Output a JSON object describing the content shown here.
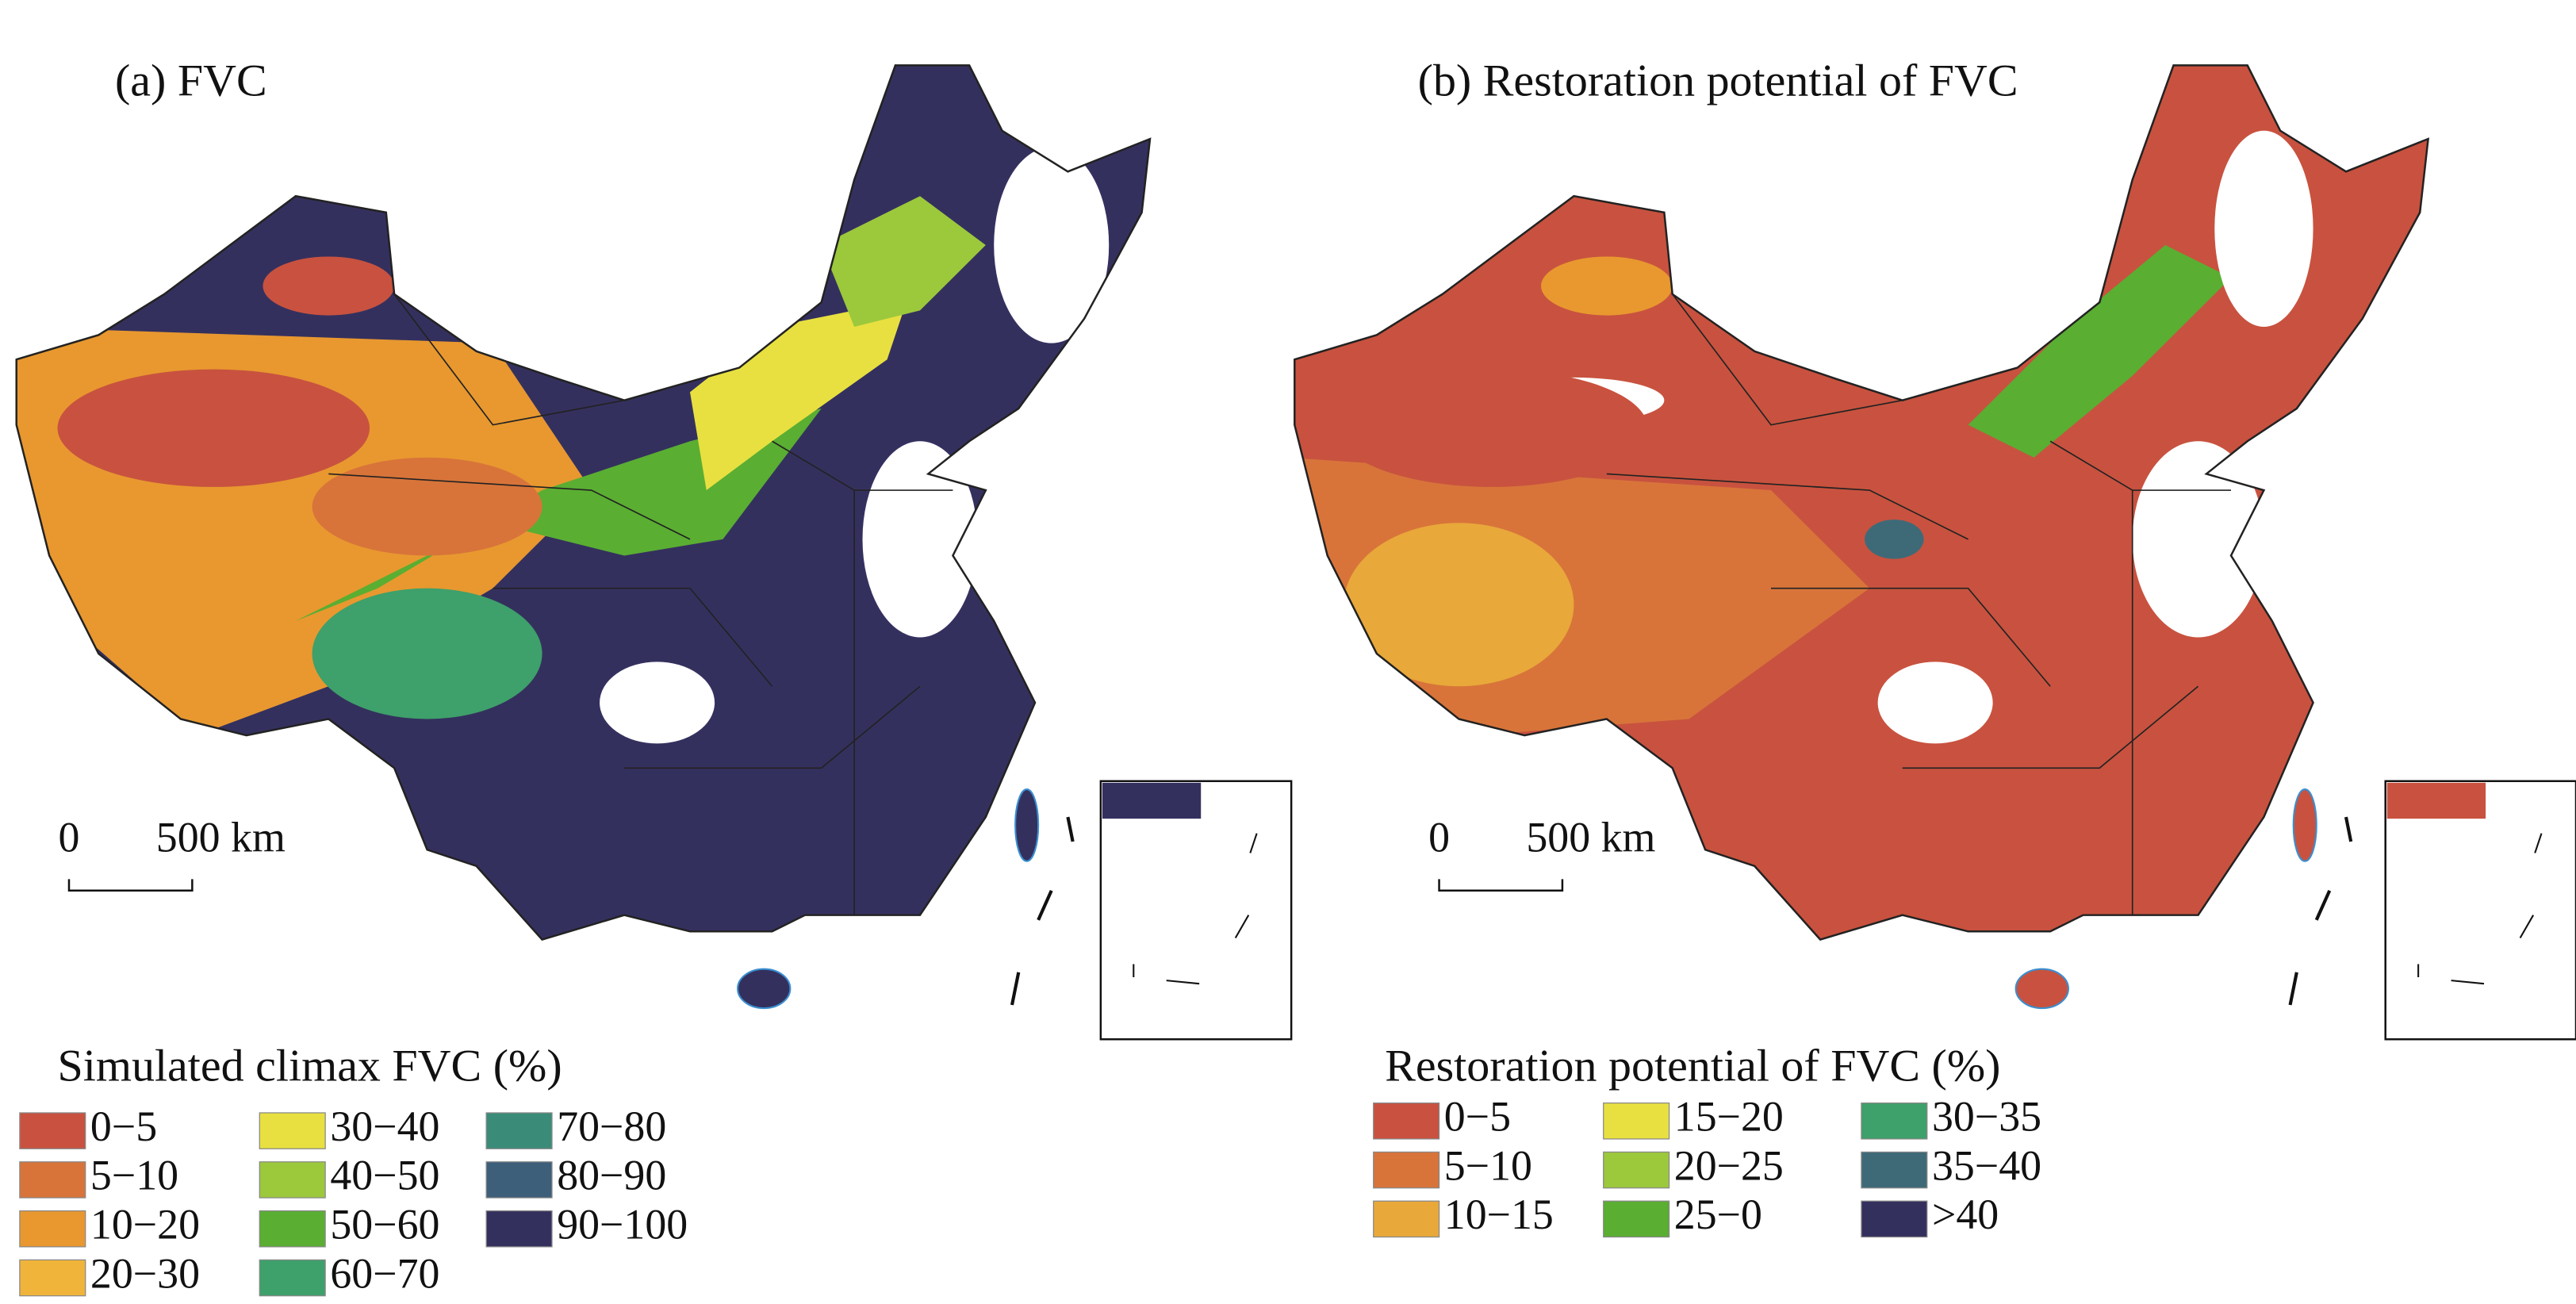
{
  "panels": [
    {
      "title": "(a) FVC",
      "scale_bar": {
        "start": "0",
        "end": "500 km"
      },
      "legend": {
        "title": "Simulated climax FVC (%)",
        "rows": 4,
        "items": [
          {
            "label": "0−5",
            "color": "#c8523f"
          },
          {
            "label": "5−10",
            "color": "#d8743a"
          },
          {
            "label": "10−20",
            "color": "#e8982f"
          },
          {
            "label": "20−30",
            "color": "#f0b43a"
          },
          {
            "label": "30−40",
            "color": "#e8e040"
          },
          {
            "label": "40−50",
            "color": "#9cc83c"
          },
          {
            "label": "50−60",
            "color": "#5aae32"
          },
          {
            "label": "60−70",
            "color": "#3ea06a"
          },
          {
            "label": "70−80",
            "color": "#3a8c78"
          },
          {
            "label": "80−90",
            "color": "#3e5f7a"
          },
          {
            "label": "90−100",
            "color": "#34305e"
          }
        ]
      }
    },
    {
      "title": "(b) Restoration potential of FVC",
      "scale_bar": {
        "start": "0",
        "end": "500 km"
      },
      "legend": {
        "title": "Restoration potential of FVC (%)",
        "rows": 3,
        "items": [
          {
            "label": "0−5",
            "color": "#c8523f"
          },
          {
            "label": "5−10",
            "color": "#d8743a"
          },
          {
            "label": "10−15",
            "color": "#e8a83a"
          },
          {
            "label": "15−20",
            "color": "#e8e040"
          },
          {
            "label": "20−25",
            "color": "#9cc83c"
          },
          {
            "label": "25−0",
            "color": "#5aae32"
          },
          {
            "label": "30−35",
            "color": "#3ea06a"
          },
          {
            "label": "35−40",
            "color": "#3e6a78"
          },
          {
            "label": ">40",
            "color": "#34305e"
          }
        ]
      }
    }
  ]
}
